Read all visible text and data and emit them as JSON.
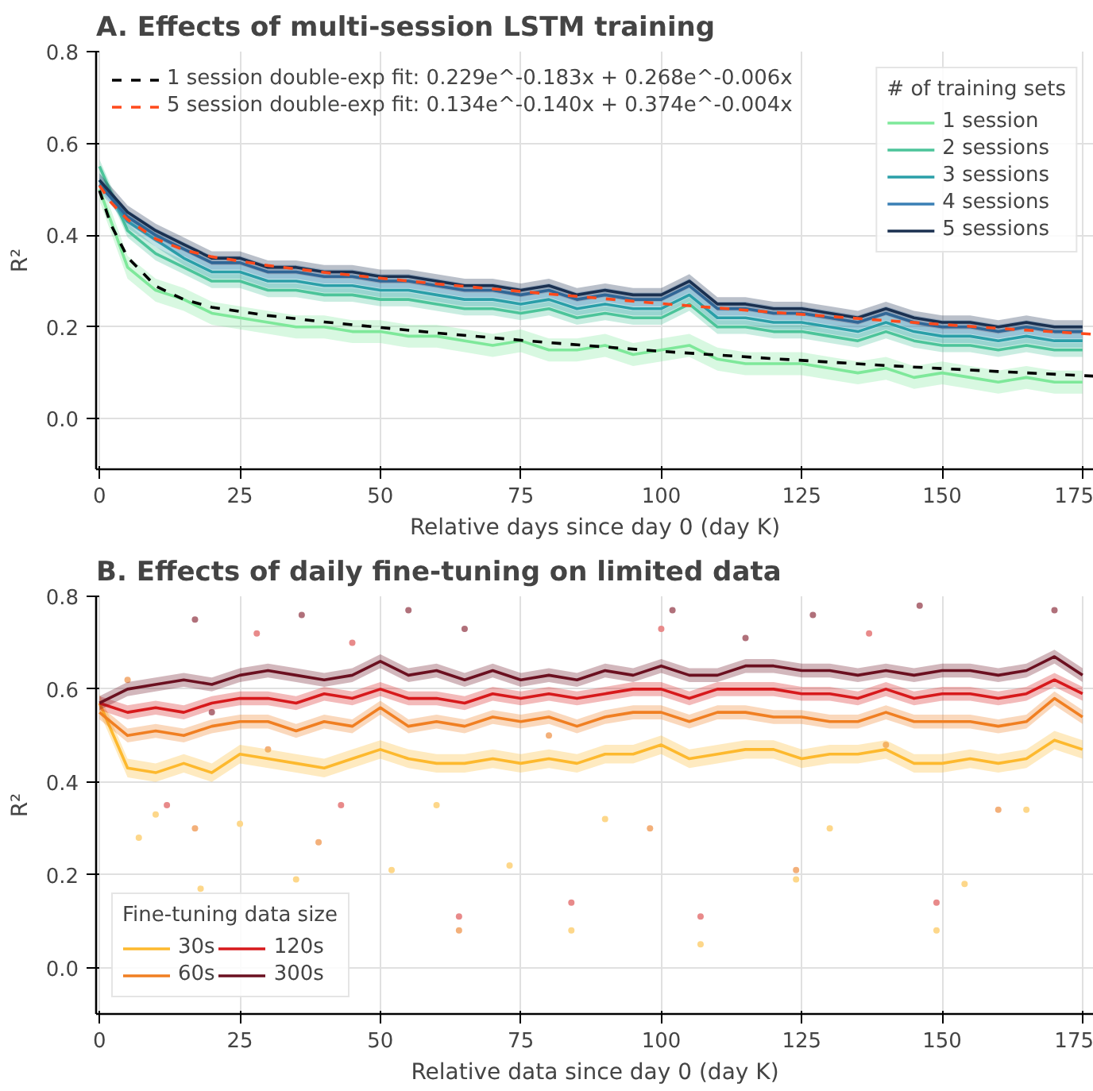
{
  "chart_data": [
    {
      "type": "line",
      "title": "A. Effects of multi-session LSTM training",
      "xlabel": "Relative days since day 0 (day K)",
      "ylabel": "R²",
      "legend_title": "# of training sets",
      "legend": "top right",
      "grid": true,
      "xlim": [
        -0.6,
        177
      ],
      "ylim": [
        -0.11,
        0.8
      ],
      "xticks": [
        0,
        25,
        50,
        75,
        100,
        125,
        150,
        175
      ],
      "yticks": [
        {
          "value": 0,
          "label": "0.0"
        },
        {
          "value": 0.2,
          "label": "0.2"
        },
        {
          "value": 0.4,
          "label": "0.4"
        },
        {
          "value": 0.6,
          "label": "0.6"
        },
        {
          "value": 0.8,
          "label": "0.8"
        }
      ],
      "x": [
        0,
        5,
        10,
        15,
        20,
        25,
        30,
        35,
        40,
        45,
        50,
        55,
        60,
        65,
        70,
        75,
        80,
        85,
        90,
        95,
        100,
        105,
        110,
        115,
        120,
        125,
        130,
        135,
        140,
        145,
        150,
        155,
        160,
        165,
        170,
        175
      ],
      "series": [
        {
          "name": "1 session",
          "color": "#7ee89a",
          "values": [
            0.5,
            0.33,
            0.28,
            0.26,
            0.23,
            0.22,
            0.21,
            0.2,
            0.2,
            0.19,
            0.19,
            0.18,
            0.18,
            0.17,
            0.16,
            0.17,
            0.15,
            0.15,
            0.16,
            0.14,
            0.15,
            0.16,
            0.13,
            0.12,
            0.12,
            0.12,
            0.11,
            0.1,
            0.11,
            0.09,
            0.1,
            0.09,
            0.08,
            0.09,
            0.08,
            0.08
          ],
          "lower": [
            0.475,
            0.305,
            0.255,
            0.235,
            0.205,
            0.195,
            0.185,
            0.175,
            0.175,
            0.165,
            0.165,
            0.155,
            0.155,
            0.145,
            0.135,
            0.145,
            0.125,
            0.125,
            0.135,
            0.115,
            0.125,
            0.135,
            0.105,
            0.095,
            0.095,
            0.095,
            0.085,
            0.075,
            0.085,
            0.065,
            0.075,
            0.065,
            0.055,
            0.065,
            0.055,
            0.055
          ],
          "upper": [
            0.525,
            0.355,
            0.305,
            0.285,
            0.255,
            0.245,
            0.235,
            0.225,
            0.225,
            0.215,
            0.215,
            0.205,
            0.205,
            0.195,
            0.185,
            0.195,
            0.175,
            0.175,
            0.185,
            0.165,
            0.175,
            0.185,
            0.155,
            0.145,
            0.145,
            0.145,
            0.135,
            0.125,
            0.135,
            0.115,
            0.125,
            0.115,
            0.105,
            0.115,
            0.105,
            0.105
          ]
        },
        {
          "name": "2 sessions",
          "color": "#4cc49a",
          "values": [
            0.55,
            0.41,
            0.36,
            0.33,
            0.3,
            0.3,
            0.28,
            0.28,
            0.27,
            0.27,
            0.26,
            0.26,
            0.25,
            0.24,
            0.24,
            0.23,
            0.24,
            0.22,
            0.23,
            0.22,
            0.22,
            0.25,
            0.2,
            0.2,
            0.19,
            0.19,
            0.18,
            0.17,
            0.19,
            0.17,
            0.16,
            0.16,
            0.15,
            0.16,
            0.15,
            0.15
          ],
          "lower": [
            0.535,
            0.395,
            0.345,
            0.315,
            0.285,
            0.285,
            0.265,
            0.265,
            0.255,
            0.255,
            0.245,
            0.245,
            0.235,
            0.225,
            0.225,
            0.215,
            0.225,
            0.205,
            0.215,
            0.205,
            0.205,
            0.235,
            0.185,
            0.185,
            0.175,
            0.175,
            0.165,
            0.155,
            0.175,
            0.155,
            0.145,
            0.145,
            0.135,
            0.145,
            0.135,
            0.135
          ],
          "upper": [
            0.565,
            0.425,
            0.375,
            0.345,
            0.315,
            0.315,
            0.295,
            0.295,
            0.285,
            0.285,
            0.275,
            0.275,
            0.265,
            0.255,
            0.255,
            0.245,
            0.255,
            0.235,
            0.245,
            0.235,
            0.235,
            0.265,
            0.215,
            0.215,
            0.205,
            0.205,
            0.195,
            0.185,
            0.205,
            0.185,
            0.175,
            0.175,
            0.165,
            0.175,
            0.165,
            0.165
          ]
        },
        {
          "name": "3 sessions",
          "color": "#2a9fa8",
          "values": [
            0.52,
            0.43,
            0.39,
            0.35,
            0.32,
            0.32,
            0.3,
            0.3,
            0.29,
            0.29,
            0.28,
            0.28,
            0.27,
            0.26,
            0.26,
            0.25,
            0.26,
            0.24,
            0.25,
            0.24,
            0.24,
            0.27,
            0.22,
            0.22,
            0.21,
            0.21,
            0.2,
            0.19,
            0.21,
            0.19,
            0.18,
            0.18,
            0.17,
            0.18,
            0.17,
            0.17
          ],
          "lower": [
            0.505,
            0.415,
            0.375,
            0.335,
            0.305,
            0.305,
            0.285,
            0.285,
            0.275,
            0.275,
            0.265,
            0.265,
            0.255,
            0.245,
            0.245,
            0.235,
            0.245,
            0.225,
            0.235,
            0.225,
            0.225,
            0.255,
            0.205,
            0.205,
            0.195,
            0.195,
            0.185,
            0.175,
            0.195,
            0.175,
            0.165,
            0.165,
            0.155,
            0.165,
            0.155,
            0.155
          ],
          "upper": [
            0.535,
            0.445,
            0.405,
            0.365,
            0.335,
            0.335,
            0.315,
            0.315,
            0.305,
            0.305,
            0.295,
            0.295,
            0.285,
            0.275,
            0.275,
            0.265,
            0.275,
            0.255,
            0.265,
            0.255,
            0.255,
            0.285,
            0.235,
            0.235,
            0.225,
            0.225,
            0.215,
            0.205,
            0.225,
            0.205,
            0.195,
            0.195,
            0.185,
            0.195,
            0.185,
            0.185
          ]
        },
        {
          "name": "4 sessions",
          "color": "#3a7fb5",
          "values": [
            0.51,
            0.44,
            0.4,
            0.37,
            0.34,
            0.34,
            0.32,
            0.32,
            0.31,
            0.31,
            0.3,
            0.3,
            0.29,
            0.28,
            0.28,
            0.27,
            0.28,
            0.26,
            0.27,
            0.26,
            0.26,
            0.29,
            0.24,
            0.24,
            0.23,
            0.23,
            0.22,
            0.21,
            0.23,
            0.21,
            0.2,
            0.2,
            0.19,
            0.2,
            0.19,
            0.19
          ],
          "lower": [
            0.495,
            0.425,
            0.385,
            0.355,
            0.325,
            0.325,
            0.305,
            0.305,
            0.295,
            0.295,
            0.285,
            0.285,
            0.275,
            0.265,
            0.265,
            0.255,
            0.265,
            0.245,
            0.255,
            0.245,
            0.245,
            0.275,
            0.225,
            0.225,
            0.215,
            0.215,
            0.205,
            0.195,
            0.215,
            0.195,
            0.185,
            0.185,
            0.175,
            0.185,
            0.175,
            0.175
          ],
          "upper": [
            0.525,
            0.455,
            0.415,
            0.385,
            0.355,
            0.355,
            0.335,
            0.335,
            0.325,
            0.325,
            0.315,
            0.315,
            0.305,
            0.295,
            0.295,
            0.285,
            0.295,
            0.275,
            0.285,
            0.275,
            0.275,
            0.305,
            0.255,
            0.255,
            0.245,
            0.245,
            0.235,
            0.225,
            0.245,
            0.225,
            0.215,
            0.215,
            0.205,
            0.215,
            0.205,
            0.205
          ]
        },
        {
          "name": "5 sessions",
          "color": "#1a3050",
          "values": [
            0.52,
            0.45,
            0.41,
            0.38,
            0.35,
            0.35,
            0.33,
            0.33,
            0.32,
            0.32,
            0.31,
            0.31,
            0.3,
            0.29,
            0.29,
            0.28,
            0.29,
            0.27,
            0.28,
            0.27,
            0.27,
            0.3,
            0.25,
            0.25,
            0.24,
            0.24,
            0.23,
            0.22,
            0.24,
            0.22,
            0.21,
            0.21,
            0.2,
            0.21,
            0.2,
            0.2
          ],
          "lower": [
            0.505,
            0.435,
            0.395,
            0.365,
            0.335,
            0.335,
            0.315,
            0.315,
            0.305,
            0.305,
            0.295,
            0.295,
            0.285,
            0.275,
            0.275,
            0.265,
            0.275,
            0.255,
            0.265,
            0.255,
            0.255,
            0.285,
            0.235,
            0.235,
            0.225,
            0.225,
            0.215,
            0.205,
            0.225,
            0.205,
            0.195,
            0.195,
            0.185,
            0.195,
            0.185,
            0.185
          ],
          "upper": [
            0.535,
            0.465,
            0.425,
            0.395,
            0.365,
            0.365,
            0.345,
            0.345,
            0.335,
            0.335,
            0.325,
            0.325,
            0.315,
            0.305,
            0.305,
            0.295,
            0.305,
            0.285,
            0.295,
            0.285,
            0.285,
            0.315,
            0.265,
            0.265,
            0.255,
            0.255,
            0.245,
            0.235,
            0.255,
            0.235,
            0.225,
            0.225,
            0.215,
            0.225,
            0.215,
            0.215
          ]
        },
        {
          "name": "1 session double-exp fit: 0.229e^-0.183x + 0.268e^-0.006x",
          "color": "#000000",
          "line_style": "dashed",
          "x": [
            0,
            2,
            5,
            10,
            15,
            20,
            30,
            40,
            60,
            80,
            100,
            120,
            140,
            160,
            177
          ],
          "values": [
            0.497,
            0.424,
            0.352,
            0.289,
            0.26,
            0.243,
            0.225,
            0.211,
            0.187,
            0.166,
            0.147,
            0.131,
            0.116,
            0.103,
            0.093
          ]
        },
        {
          "name": "5 session double-exp fit: 0.134e^-0.140x + 0.374e^-0.004x",
          "color": "#ff4a1c",
          "line_style": "dashed",
          "x": [
            0,
            2,
            5,
            10,
            15,
            20,
            30,
            40,
            60,
            80,
            100,
            120,
            140,
            160,
            177
          ],
          "values": [
            0.508,
            0.472,
            0.434,
            0.392,
            0.368,
            0.353,
            0.334,
            0.319,
            0.294,
            0.272,
            0.251,
            0.232,
            0.214,
            0.197,
            0.184
          ]
        }
      ]
    },
    {
      "type": "line",
      "title": "B. Effects of daily fine-tuning on limited data",
      "xlabel": "Relative data since day 0 (day K)",
      "ylabel": "R²",
      "legend_title": "Fine-tuning data size",
      "legend": "bottom left",
      "grid": true,
      "xlim": [
        -0.6,
        177
      ],
      "ylim": [
        -0.1,
        0.8
      ],
      "xticks": [
        0,
        25,
        50,
        75,
        100,
        125,
        150,
        175
      ],
      "yticks": [
        {
          "value": 0,
          "label": "0.0"
        },
        {
          "value": 0.2,
          "label": "0.2"
        },
        {
          "value": 0.4,
          "label": "0.4"
        },
        {
          "value": 0.6,
          "label": "0.6"
        },
        {
          "value": 0.8,
          "label": "0.8"
        }
      ],
      "x": [
        0,
        5,
        10,
        15,
        20,
        25,
        30,
        35,
        40,
        45,
        50,
        55,
        60,
        65,
        70,
        75,
        80,
        85,
        90,
        95,
        100,
        105,
        110,
        115,
        120,
        125,
        130,
        135,
        140,
        145,
        150,
        155,
        160,
        165,
        170,
        175
      ],
      "series": [
        {
          "type": "scatter",
          "color": "#fdd78a",
          "x": [
            7,
            18,
            35,
            52,
            73,
            84,
            107,
            124,
            149,
            154,
            10,
            60,
            90,
            130,
            165,
            25
          ],
          "values": [
            0.28,
            0.17,
            0.19,
            0.21,
            0.22,
            0.08,
            0.05,
            0.19,
            0.08,
            0.18,
            0.33,
            0.35,
            0.32,
            0.3,
            0.34,
            0.31
          ]
        },
        {
          "type": "scatter",
          "color": "#f3b07a",
          "x": [
            17,
            39,
            64,
            98,
            124,
            160,
            30,
            80,
            140,
            5
          ],
          "values": [
            0.3,
            0.27,
            0.08,
            0.3,
            0.21,
            0.34,
            0.47,
            0.5,
            0.48,
            0.62
          ]
        },
        {
          "type": "scatter",
          "color": "#e88a8a",
          "x": [
            64,
            84,
            107,
            149,
            28,
            45,
            100,
            137,
            12,
            43
          ],
          "values": [
            0.11,
            0.14,
            0.11,
            0.14,
            0.72,
            0.7,
            0.73,
            0.72,
            0.35,
            0.35
          ]
        },
        {
          "type": "scatter",
          "color": "#b0707a",
          "x": [
            17,
            36,
            55,
            102,
            127,
            146,
            170,
            20,
            65,
            115
          ],
          "values": [
            0.75,
            0.76,
            0.77,
            0.77,
            0.76,
            0.78,
            0.77,
            0.55,
            0.73,
            0.71
          ]
        },
        {
          "name": "30s",
          "color": "#fdb92e",
          "values": [
            0.57,
            0.43,
            0.42,
            0.44,
            0.42,
            0.46,
            0.45,
            0.44,
            0.43,
            0.45,
            0.47,
            0.45,
            0.44,
            0.44,
            0.45,
            0.44,
            0.45,
            0.44,
            0.46,
            0.46,
            0.48,
            0.45,
            0.46,
            0.47,
            0.47,
            0.45,
            0.46,
            0.46,
            0.47,
            0.44,
            0.44,
            0.45,
            0.44,
            0.45,
            0.49,
            0.47
          ],
          "lower": [
            0.55,
            0.41,
            0.4,
            0.42,
            0.4,
            0.44,
            0.43,
            0.42,
            0.41,
            0.43,
            0.45,
            0.43,
            0.42,
            0.42,
            0.43,
            0.42,
            0.43,
            0.42,
            0.44,
            0.44,
            0.46,
            0.43,
            0.44,
            0.45,
            0.45,
            0.43,
            0.44,
            0.44,
            0.45,
            0.42,
            0.42,
            0.43,
            0.42,
            0.43,
            0.47,
            0.45
          ],
          "upper": [
            0.59,
            0.45,
            0.44,
            0.46,
            0.44,
            0.48,
            0.47,
            0.46,
            0.45,
            0.47,
            0.49,
            0.47,
            0.46,
            0.46,
            0.47,
            0.46,
            0.47,
            0.46,
            0.48,
            0.48,
            0.5,
            0.47,
            0.48,
            0.49,
            0.49,
            0.47,
            0.48,
            0.48,
            0.49,
            0.46,
            0.46,
            0.47,
            0.46,
            0.47,
            0.51,
            0.49
          ]
        },
        {
          "name": "60s",
          "color": "#f07f22",
          "values": [
            0.55,
            0.5,
            0.51,
            0.5,
            0.52,
            0.53,
            0.53,
            0.51,
            0.53,
            0.52,
            0.56,
            0.52,
            0.53,
            0.52,
            0.54,
            0.53,
            0.54,
            0.52,
            0.54,
            0.55,
            0.55,
            0.53,
            0.55,
            0.55,
            0.54,
            0.54,
            0.53,
            0.53,
            0.55,
            0.53,
            0.53,
            0.53,
            0.52,
            0.53,
            0.58,
            0.54
          ],
          "lower": [
            0.535,
            0.485,
            0.495,
            0.485,
            0.505,
            0.515,
            0.515,
            0.495,
            0.515,
            0.505,
            0.545,
            0.505,
            0.515,
            0.505,
            0.525,
            0.515,
            0.525,
            0.505,
            0.525,
            0.535,
            0.535,
            0.515,
            0.535,
            0.535,
            0.525,
            0.525,
            0.515,
            0.515,
            0.535,
            0.515,
            0.515,
            0.515,
            0.505,
            0.515,
            0.565,
            0.525
          ],
          "upper": [
            0.565,
            0.515,
            0.525,
            0.515,
            0.535,
            0.545,
            0.545,
            0.525,
            0.545,
            0.535,
            0.575,
            0.535,
            0.545,
            0.535,
            0.555,
            0.545,
            0.555,
            0.535,
            0.555,
            0.565,
            0.565,
            0.545,
            0.565,
            0.565,
            0.555,
            0.555,
            0.545,
            0.545,
            0.565,
            0.545,
            0.545,
            0.545,
            0.535,
            0.545,
            0.595,
            0.555
          ]
        },
        {
          "name": "120s",
          "color": "#d7191c",
          "values": [
            0.57,
            0.55,
            0.56,
            0.55,
            0.57,
            0.58,
            0.58,
            0.57,
            0.59,
            0.58,
            0.6,
            0.58,
            0.58,
            0.57,
            0.59,
            0.58,
            0.59,
            0.58,
            0.59,
            0.6,
            0.6,
            0.58,
            0.6,
            0.6,
            0.6,
            0.59,
            0.59,
            0.58,
            0.6,
            0.58,
            0.59,
            0.59,
            0.58,
            0.59,
            0.62,
            0.59
          ],
          "lower": [
            0.555,
            0.535,
            0.545,
            0.535,
            0.555,
            0.565,
            0.565,
            0.555,
            0.575,
            0.565,
            0.585,
            0.565,
            0.565,
            0.555,
            0.575,
            0.565,
            0.575,
            0.565,
            0.575,
            0.585,
            0.585,
            0.565,
            0.585,
            0.585,
            0.585,
            0.575,
            0.575,
            0.565,
            0.585,
            0.565,
            0.575,
            0.575,
            0.565,
            0.575,
            0.605,
            0.575
          ],
          "upper": [
            0.585,
            0.565,
            0.575,
            0.565,
            0.585,
            0.595,
            0.595,
            0.585,
            0.605,
            0.595,
            0.615,
            0.595,
            0.595,
            0.585,
            0.605,
            0.595,
            0.605,
            0.595,
            0.605,
            0.615,
            0.615,
            0.595,
            0.615,
            0.615,
            0.615,
            0.605,
            0.605,
            0.595,
            0.615,
            0.595,
            0.605,
            0.605,
            0.595,
            0.605,
            0.635,
            0.605
          ]
        },
        {
          "name": "300s",
          "color": "#6b1020",
          "values": [
            0.57,
            0.6,
            0.61,
            0.62,
            0.61,
            0.63,
            0.64,
            0.63,
            0.62,
            0.63,
            0.66,
            0.63,
            0.64,
            0.62,
            0.64,
            0.62,
            0.63,
            0.62,
            0.64,
            0.63,
            0.65,
            0.63,
            0.63,
            0.65,
            0.65,
            0.64,
            0.64,
            0.63,
            0.64,
            0.63,
            0.64,
            0.64,
            0.63,
            0.64,
            0.67,
            0.63
          ],
          "lower": [
            0.555,
            0.585,
            0.595,
            0.605,
            0.595,
            0.615,
            0.625,
            0.615,
            0.605,
            0.615,
            0.645,
            0.615,
            0.625,
            0.605,
            0.625,
            0.605,
            0.615,
            0.605,
            0.625,
            0.615,
            0.635,
            0.615,
            0.615,
            0.635,
            0.635,
            0.625,
            0.625,
            0.615,
            0.625,
            0.615,
            0.625,
            0.625,
            0.615,
            0.625,
            0.655,
            0.615
          ],
          "upper": [
            0.585,
            0.615,
            0.625,
            0.635,
            0.625,
            0.645,
            0.655,
            0.645,
            0.635,
            0.645,
            0.675,
            0.645,
            0.655,
            0.635,
            0.655,
            0.635,
            0.645,
            0.635,
            0.655,
            0.645,
            0.665,
            0.645,
            0.645,
            0.665,
            0.665,
            0.655,
            0.655,
            0.645,
            0.655,
            0.645,
            0.655,
            0.655,
            0.645,
            0.655,
            0.685,
            0.645
          ]
        }
      ]
    }
  ]
}
